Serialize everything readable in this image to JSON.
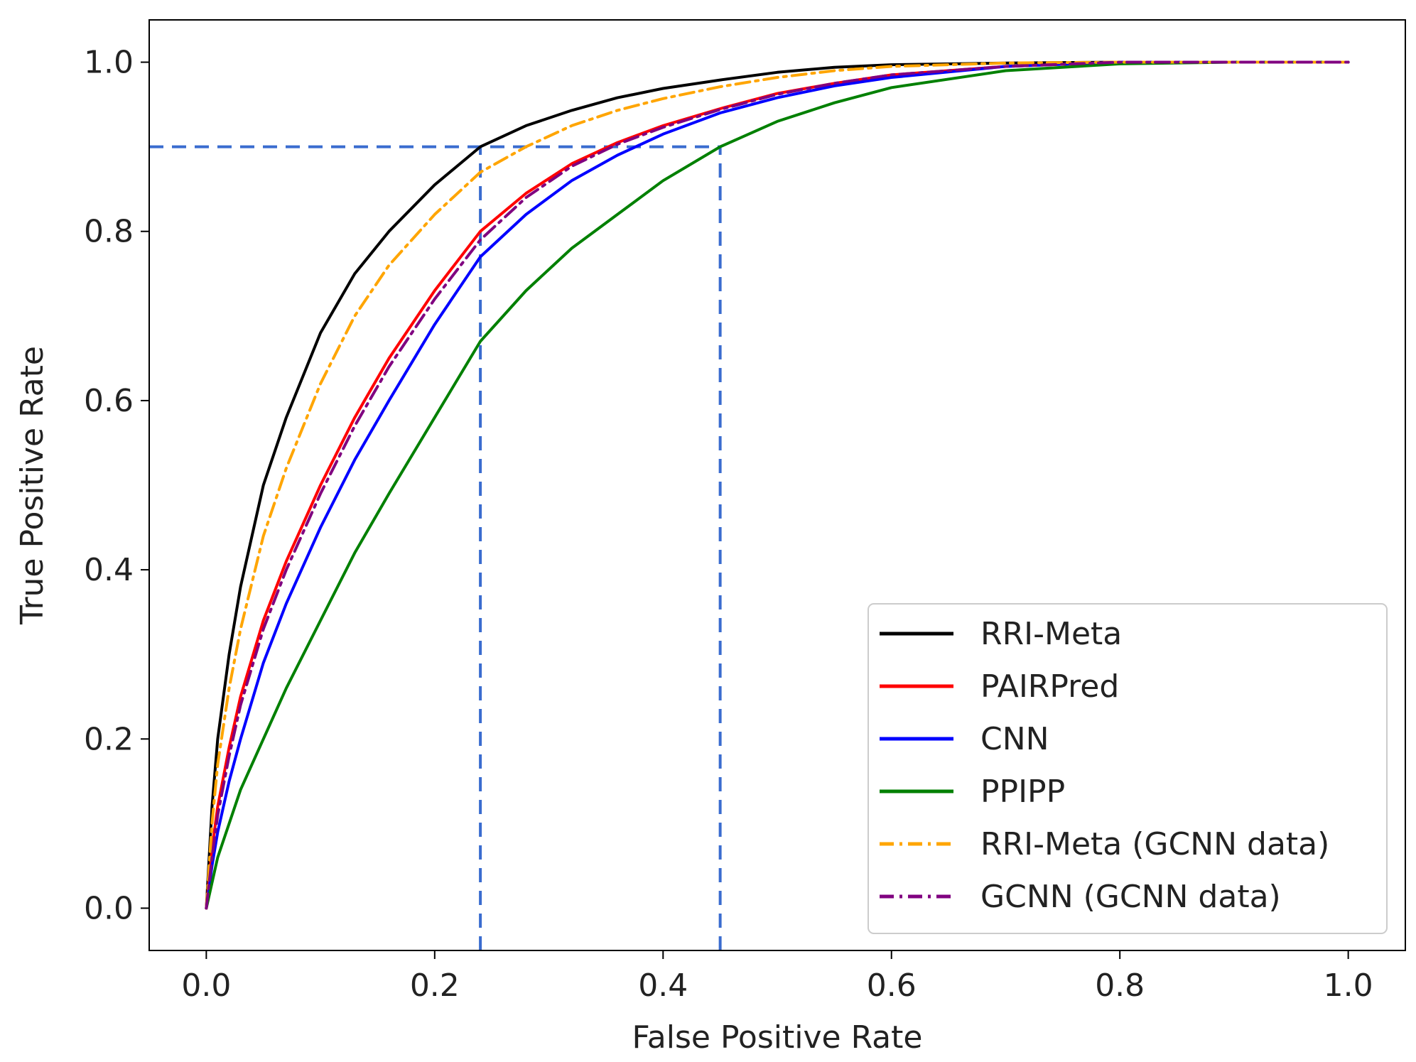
{
  "chart_data": {
    "type": "line",
    "title": "",
    "xlabel": "False Positive Rate",
    "ylabel": "True Positive Rate",
    "xlim": [
      -0.05,
      1.05
    ],
    "ylim": [
      -0.05,
      1.05
    ],
    "xticks": [
      0.0,
      0.2,
      0.4,
      0.6,
      0.8,
      1.0
    ],
    "yticks": [
      0.0,
      0.2,
      0.4,
      0.6,
      0.8,
      1.0
    ],
    "xtick_labels": [
      "0.0",
      "0.2",
      "0.4",
      "0.6",
      "0.8",
      "1.0"
    ],
    "ytick_labels": [
      "0.0",
      "0.2",
      "0.4",
      "0.6",
      "0.8",
      "1.0"
    ],
    "legend_position": "lower-right",
    "series": [
      {
        "name": "RRI-Meta",
        "color": "#000000",
        "style": "solid",
        "x": [
          0,
          0.005,
          0.01,
          0.02,
          0.03,
          0.05,
          0.07,
          0.1,
          0.13,
          0.16,
          0.2,
          0.24,
          0.28,
          0.32,
          0.36,
          0.4,
          0.45,
          0.5,
          0.55,
          0.6,
          0.7,
          0.8,
          0.9,
          1.0
        ],
        "y": [
          0,
          0.12,
          0.2,
          0.3,
          0.38,
          0.5,
          0.58,
          0.68,
          0.75,
          0.8,
          0.855,
          0.9,
          0.925,
          0.943,
          0.958,
          0.969,
          0.979,
          0.988,
          0.994,
          0.997,
          0.999,
          1.0,
          1.0,
          1.0
        ]
      },
      {
        "name": "PAIRPred",
        "color": "#ff0000",
        "style": "solid",
        "x": [
          0,
          0.005,
          0.01,
          0.02,
          0.03,
          0.05,
          0.07,
          0.1,
          0.13,
          0.16,
          0.2,
          0.24,
          0.28,
          0.32,
          0.36,
          0.4,
          0.45,
          0.5,
          0.55,
          0.6,
          0.7,
          0.8,
          0.9,
          1.0
        ],
        "y": [
          0,
          0.07,
          0.12,
          0.19,
          0.25,
          0.34,
          0.41,
          0.5,
          0.58,
          0.65,
          0.73,
          0.8,
          0.845,
          0.88,
          0.905,
          0.925,
          0.945,
          0.963,
          0.975,
          0.985,
          0.995,
          1.0,
          1.0,
          1.0
        ]
      },
      {
        "name": "CNN",
        "color": "#0000ff",
        "style": "solid",
        "x": [
          0,
          0.005,
          0.01,
          0.02,
          0.03,
          0.05,
          0.07,
          0.1,
          0.13,
          0.16,
          0.2,
          0.24,
          0.28,
          0.32,
          0.36,
          0.4,
          0.45,
          0.5,
          0.55,
          0.6,
          0.7,
          0.8,
          0.9,
          1.0
        ],
        "y": [
          0,
          0.05,
          0.09,
          0.15,
          0.2,
          0.29,
          0.36,
          0.45,
          0.53,
          0.6,
          0.69,
          0.77,
          0.82,
          0.86,
          0.89,
          0.915,
          0.94,
          0.958,
          0.972,
          0.982,
          0.995,
          1.0,
          1.0,
          1.0
        ]
      },
      {
        "name": "PPIPP",
        "color": "#008000",
        "style": "solid",
        "x": [
          0,
          0.005,
          0.01,
          0.02,
          0.03,
          0.05,
          0.07,
          0.1,
          0.13,
          0.16,
          0.2,
          0.24,
          0.28,
          0.32,
          0.36,
          0.4,
          0.45,
          0.5,
          0.55,
          0.6,
          0.7,
          0.8,
          0.9,
          1.0
        ],
        "y": [
          0,
          0.03,
          0.06,
          0.1,
          0.14,
          0.2,
          0.26,
          0.34,
          0.42,
          0.49,
          0.58,
          0.67,
          0.73,
          0.78,
          0.82,
          0.86,
          0.9,
          0.93,
          0.952,
          0.97,
          0.99,
          0.998,
          1.0,
          1.0
        ]
      },
      {
        "name": "RRI-Meta (GCNN data)",
        "color": "#ffa500",
        "style": "dashdot",
        "x": [
          0,
          0.005,
          0.01,
          0.02,
          0.03,
          0.05,
          0.07,
          0.1,
          0.13,
          0.16,
          0.2,
          0.24,
          0.28,
          0.32,
          0.36,
          0.4,
          0.45,
          0.5,
          0.55,
          0.6,
          0.7,
          0.8,
          0.9,
          1.0
        ],
        "y": [
          0,
          0.1,
          0.17,
          0.26,
          0.33,
          0.44,
          0.52,
          0.62,
          0.7,
          0.76,
          0.82,
          0.87,
          0.9,
          0.925,
          0.943,
          0.957,
          0.971,
          0.982,
          0.99,
          0.995,
          0.999,
          1.0,
          1.0,
          1.0
        ]
      },
      {
        "name": "GCNN (GCNN data)",
        "color": "#800080",
        "style": "dashdot",
        "x": [
          0,
          0.005,
          0.01,
          0.02,
          0.03,
          0.05,
          0.07,
          0.1,
          0.13,
          0.16,
          0.2,
          0.24,
          0.28,
          0.32,
          0.36,
          0.4,
          0.45,
          0.5,
          0.55,
          0.6,
          0.7,
          0.8,
          0.9,
          1.0
        ],
        "y": [
          0,
          0.06,
          0.11,
          0.18,
          0.24,
          0.33,
          0.4,
          0.49,
          0.57,
          0.64,
          0.72,
          0.79,
          0.84,
          0.877,
          0.903,
          0.923,
          0.944,
          0.962,
          0.975,
          0.985,
          0.995,
          1.0,
          1.0,
          1.0
        ]
      }
    ],
    "reference_lines": [
      {
        "name": "tpr-0.9-horizontal",
        "color": "#3a6ccf",
        "style": "dashed",
        "x": [
          -0.05,
          0.45
        ],
        "y": [
          0.9,
          0.9
        ]
      },
      {
        "name": "fpr-0.24-vertical",
        "color": "#3a6ccf",
        "style": "dashed",
        "x": [
          0.24,
          0.24
        ],
        "y": [
          -0.05,
          0.9
        ]
      },
      {
        "name": "fpr-0.45-vertical",
        "color": "#3a6ccf",
        "style": "dashed",
        "x": [
          0.45,
          0.45
        ],
        "y": [
          -0.05,
          0.9
        ]
      }
    ]
  }
}
